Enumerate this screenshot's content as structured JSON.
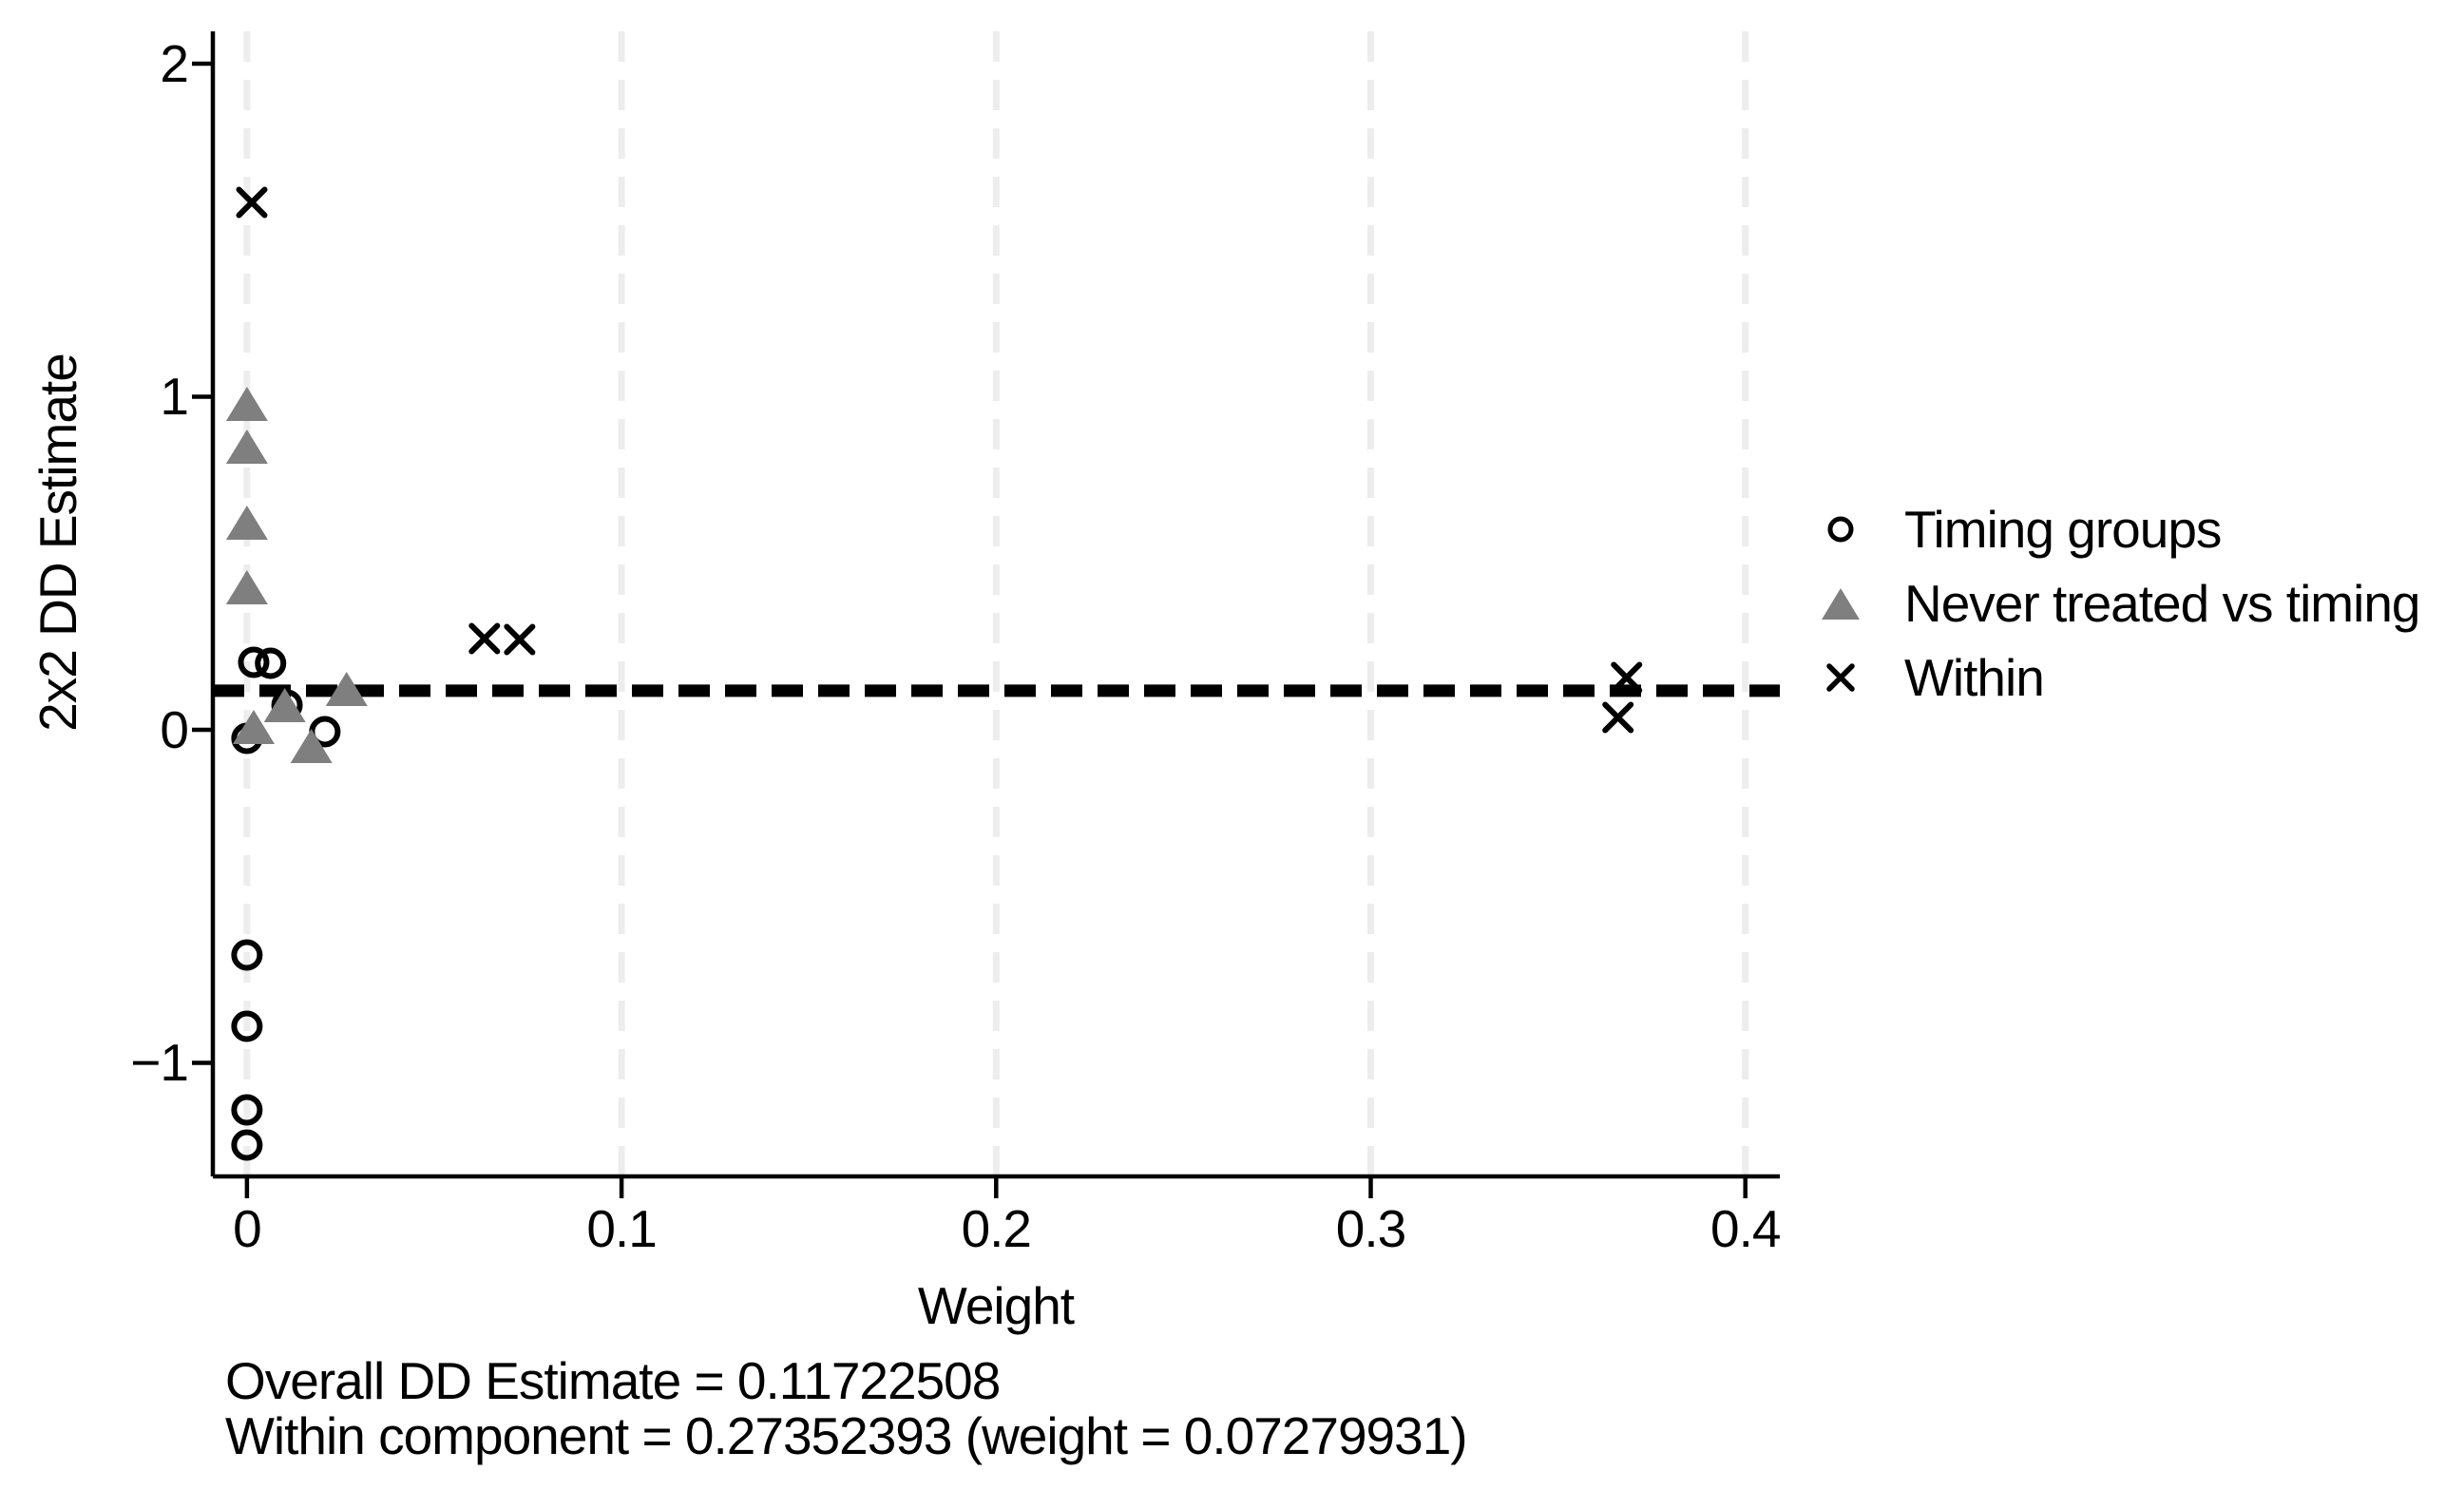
{
  "figure": {
    "background": "#ffffff",
    "notes": [
      "Overall DD Estimate =  0.11722508",
      "Within component = 0.27352393 (weight = 0.07279931)"
    ]
  },
  "colors": {
    "axis": "#000000",
    "gridline": "#ededed",
    "reference_line": "#000000",
    "triangle_gray": "#7f7f7f",
    "marker_black": "#000000"
  },
  "chart_data": {
    "type": "scatter",
    "title": "",
    "xlabel": "Weight",
    "ylabel": "2x2 DD Estimate",
    "xlim": [
      -0.0091,
      0.4092
    ],
    "ylim": [
      -1.341,
      2.097
    ],
    "xticks": [
      0,
      0.1,
      0.2,
      0.3,
      0.4
    ],
    "xtick_labels": [
      "0",
      "0.1",
      "0.2",
      "0.3",
      "0.4"
    ],
    "yticks": [
      2,
      1,
      0,
      -1
    ],
    "ytick_labels": [
      "2",
      "1",
      "0",
      "−1"
    ],
    "grid": "vertical dashed gridlines at each x tick",
    "legend_position": "right",
    "overall_dd_estimate": 0.11722508,
    "within_component": {
      "estimate": 0.27352393,
      "weight": 0.07279931
    },
    "reference_line": {
      "value": 0.11722508,
      "style": "dashed",
      "color": "#000000",
      "width": 13,
      "dash": [
        33,
        16
      ]
    },
    "series": [
      {
        "name": "Timing groups",
        "marker": "circle",
        "color": "#000000",
        "points": [
          [
            0.0018,
            0.2026
          ],
          [
            0.0063,
            0.1997
          ],
          [
            0.0107,
            0.0742
          ],
          [
            0.0,
            -0.0257
          ],
          [
            0.0208,
            -0.0057
          ],
          [
            0.0,
            -0.6762
          ],
          [
            0.0,
            -0.8902
          ],
          [
            0.0,
            -1.1412
          ],
          [
            0.0,
            -1.2468
          ]
        ]
      },
      {
        "name": "Never treated vs timing",
        "marker": "triangle",
        "color": "#7f7f7f",
        "points": [
          [
            0.0,
            0.9786
          ],
          [
            0.0,
            0.8502
          ],
          [
            0.0,
            0.6219
          ],
          [
            0.0,
            0.428
          ],
          [
            0.0101,
            0.0742
          ],
          [
            0.0266,
            0.1227
          ],
          [
            0.0018,
            0.0086
          ],
          [
            0.0172,
            -0.0485
          ]
        ]
      },
      {
        "name": "Within",
        "marker": "x",
        "color": "#000000",
        "points": [
          [
            0.0013,
            1.5834
          ],
          [
            0.0634,
            0.2739
          ],
          [
            0.0728,
            0.2711
          ],
          [
            0.3683,
            0.1569
          ],
          [
            0.366,
            0.0371
          ]
        ]
      }
    ]
  }
}
